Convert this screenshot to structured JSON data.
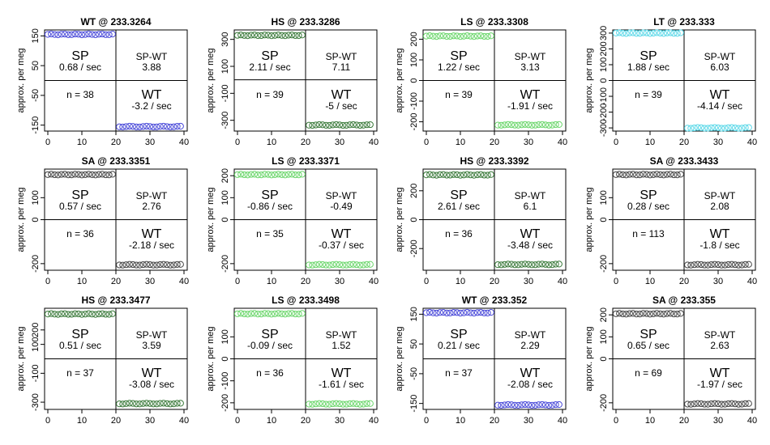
{
  "figure": {
    "ylabel": "approx. per meg",
    "quadrant_labels": {
      "sp": "SP",
      "spwt": "SP-WT",
      "wt": "WT"
    }
  },
  "chart_data": [
    {
      "type": "scatter",
      "title": "WT @ 233.3264",
      "color": "#4a4ad9",
      "ylim": [
        -170,
        170
      ],
      "yticks": [
        -150,
        -50,
        50,
        150
      ],
      "xticks": [
        0,
        10,
        20,
        30,
        40
      ],
      "xlim": [
        0,
        40
      ],
      "level_sp": 155,
      "level_wt": -155,
      "n": "n = 38",
      "sp_rate": "0.68 / sec",
      "spwt": "3.88",
      "wt_rate": "-3.2 / sec"
    },
    {
      "type": "scatter",
      "title": "HS @ 233.3286",
      "color": "#3a7a3a",
      "ylim": [
        -380,
        370
      ],
      "yticks": [
        -300,
        -100,
        100,
        300
      ],
      "xticks": [
        0,
        10,
        20,
        30,
        40
      ],
      "xlim": [
        0,
        40
      ],
      "level_sp": 330,
      "level_wt": -335,
      "n": "n = 39",
      "sp_rate": "2.11 / sec",
      "spwt": "7.11",
      "wt_rate": "-5 / sec"
    },
    {
      "type": "scatter",
      "title": "LS @ 233.3308",
      "color": "#6ad66a",
      "ylim": [
        -245,
        245
      ],
      "yticks": [
        -200,
        -100,
        0,
        100,
        200
      ],
      "xticks": [
        0,
        10,
        20,
        30,
        40
      ],
      "xlim": [
        0,
        40
      ],
      "level_sp": 215,
      "level_wt": -215,
      "n": "n = 39",
      "sp_rate": "1.22 / sec",
      "spwt": "3.13",
      "wt_rate": "-1.91 / sec"
    },
    {
      "type": "scatter",
      "title": "LT @ 233.333",
      "color": "#5ad8e8",
      "ylim": [
        -320,
        320
      ],
      "yticks": [
        -300,
        -200,
        -100,
        0,
        100,
        200,
        300
      ],
      "xticks": [
        0,
        10,
        20,
        30,
        40
      ],
      "xlim": [
        0,
        40
      ],
      "level_sp": 300,
      "level_wt": -300,
      "n": "n = 39",
      "sp_rate": "1.88 / sec",
      "spwt": "6.03",
      "wt_rate": "-4.14 / sec"
    },
    {
      "type": "scatter",
      "title": "SA @ 233.3351",
      "color": "#444444",
      "ylim": [
        -230,
        230
      ],
      "yticks": [
        -200,
        0,
        100
      ],
      "xticks": [
        0,
        10,
        20,
        30,
        40
      ],
      "xlim": [
        0,
        40
      ],
      "level_sp": 205,
      "level_wt": -205,
      "n": "n = 36",
      "sp_rate": "0.57 / sec",
      "spwt": "2.76",
      "wt_rate": "-2.18 / sec"
    },
    {
      "type": "scatter",
      "title": "LS @ 233.3371",
      "color": "#6ad66a",
      "ylim": [
        -230,
        230
      ],
      "yticks": [
        -200,
        0,
        100,
        200
      ],
      "xticks": [
        0,
        10,
        20,
        30,
        40
      ],
      "xlim": [
        0,
        40
      ],
      "level_sp": 205,
      "level_wt": -205,
      "n": "n = 35",
      "sp_rate": "-0.86 / sec",
      "spwt": "-0.49",
      "wt_rate": "-0.37 / sec"
    },
    {
      "type": "scatter",
      "title": "HS @ 233.3392",
      "color": "#3a7a3a",
      "ylim": [
        -350,
        350
      ],
      "yticks": [
        -200,
        0,
        200
      ],
      "xticks": [
        0,
        10,
        20,
        30,
        40
      ],
      "xlim": [
        0,
        40
      ],
      "level_sp": 310,
      "level_wt": -310,
      "n": "n = 36",
      "sp_rate": "2.61 / sec",
      "spwt": "6.1",
      "wt_rate": "-3.48 / sec"
    },
    {
      "type": "scatter",
      "title": "SA @ 233.3433",
      "color": "#444444",
      "ylim": [
        -230,
        230
      ],
      "yticks": [
        -200,
        0,
        100
      ],
      "xticks": [
        0,
        10,
        20,
        30,
        40
      ],
      "xlim": [
        0,
        40
      ],
      "level_sp": 205,
      "level_wt": -205,
      "n": "n = 113",
      "sp_rate": "0.28 / sec",
      "spwt": "2.08",
      "wt_rate": "-1.8 / sec"
    },
    {
      "type": "scatter",
      "title": "HS @ 233.3477",
      "color": "#3a7a3a",
      "ylim": [
        -350,
        350
      ],
      "yticks": [
        -300,
        -100,
        100,
        200
      ],
      "xticks": [
        0,
        10,
        20,
        30,
        40
      ],
      "xlim": [
        0,
        40
      ],
      "level_sp": 310,
      "level_wt": -310,
      "n": "n = 37",
      "sp_rate": "0.51 / sec",
      "spwt": "3.59",
      "wt_rate": "-3.08 / sec"
    },
    {
      "type": "scatter",
      "title": "LS @ 233.3498",
      "color": "#6ad66a",
      "ylim": [
        -230,
        230
      ],
      "yticks": [
        -200,
        -100,
        0,
        100
      ],
      "xticks": [
        0,
        10,
        20,
        30,
        40
      ],
      "xlim": [
        0,
        40
      ],
      "level_sp": 205,
      "level_wt": -205,
      "n": "n = 36",
      "sp_rate": "-0.09 / sec",
      "spwt": "1.52",
      "wt_rate": "-1.61 / sec"
    },
    {
      "type": "scatter",
      "title": "WT @ 233.352",
      "color": "#4a4ad9",
      "ylim": [
        -170,
        170
      ],
      "yticks": [
        -150,
        -50,
        50,
        150
      ],
      "xticks": [
        0,
        10,
        20,
        30,
        40
      ],
      "xlim": [
        0,
        40
      ],
      "level_sp": 155,
      "level_wt": -155,
      "n": "n = 37",
      "sp_rate": "0.21 / sec",
      "spwt": "2.29",
      "wt_rate": "-2.08 / sec"
    },
    {
      "type": "scatter",
      "title": "SA @ 233.355",
      "color": "#444444",
      "ylim": [
        -230,
        230
      ],
      "yticks": [
        -200,
        0,
        100,
        200
      ],
      "xticks": [
        0,
        10,
        20,
        30,
        40
      ],
      "xlim": [
        0,
        40
      ],
      "level_sp": 205,
      "level_wt": -205,
      "n": "n = 69",
      "sp_rate": "0.65 / sec",
      "spwt": "2.63",
      "wt_rate": "-1.97 / sec"
    }
  ]
}
